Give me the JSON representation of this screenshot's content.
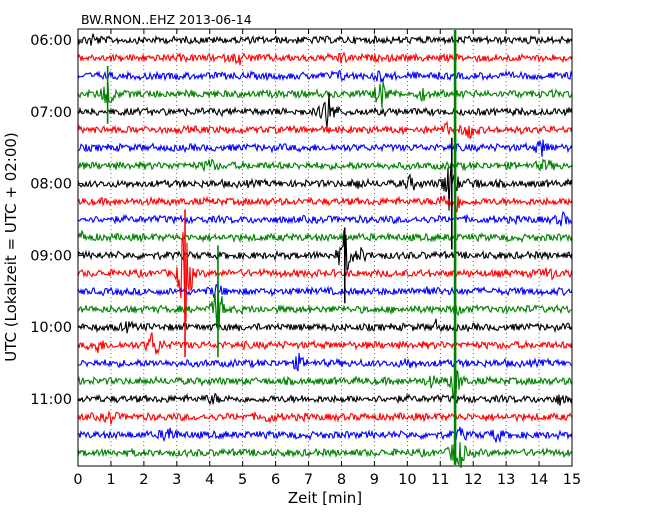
{
  "chart_data": {
    "type": "line",
    "title": "BW.RNON..EHZ 2013-06-14",
    "xlabel": "Zeit  [min]",
    "ylabel": "UTC (Lokalzeit = UTC + 02:00)",
    "xlim": [
      0,
      15
    ],
    "x_ticks": [
      "0",
      "1",
      "2",
      "3",
      "4",
      "5",
      "6",
      "7",
      "8",
      "9",
      "10",
      "11",
      "12",
      "13",
      "14",
      "15"
    ],
    "y_tick_labels": [
      "06:00",
      "07:00",
      "08:00",
      "09:00",
      "10:00",
      "11:00"
    ],
    "trace_interval_minutes": 15,
    "start_time": "06:00",
    "trace_colors": [
      "#000000",
      "#ff0000",
      "#0000ff",
      "#008000"
    ],
    "traces": [
      {
        "start": "06:00",
        "color": "#000000",
        "spikes": [
          [
            0.45,
            0.5
          ]
        ]
      },
      {
        "start": "06:15",
        "color": "#ff0000",
        "spikes": [
          [
            4.9,
            0.5
          ],
          [
            8.0,
            0.4
          ]
        ]
      },
      {
        "start": "06:30",
        "color": "#0000ff",
        "spikes": [
          [
            7.9,
            0.4
          ],
          [
            9.2,
            0.4
          ]
        ]
      },
      {
        "start": "06:45",
        "color": "#008000",
        "spikes": [
          [
            0.9,
            1.5
          ],
          [
            9.2,
            1.5
          ],
          [
            10.5,
            0.5
          ]
        ]
      },
      {
        "start": "07:00",
        "color": "#000000",
        "spikes": [
          [
            7.6,
            2.2
          ]
        ]
      },
      {
        "start": "07:15",
        "color": "#ff0000",
        "spikes": [
          [
            11.2,
            0.4
          ],
          [
            11.9,
            0.8
          ]
        ]
      },
      {
        "start": "07:30",
        "color": "#0000ff",
        "spikes": [
          [
            14.1,
            0.8
          ]
        ]
      },
      {
        "start": "07:45",
        "color": "#008000",
        "spikes": [
          [
            4.0,
            0.6
          ],
          [
            14.2,
            0.5
          ]
        ]
      },
      {
        "start": "08:00",
        "color": "#000000",
        "spikes": [
          [
            8.5,
            0.4
          ],
          [
            10.1,
            0.6
          ],
          [
            11.3,
            3.0
          ],
          [
            12.0,
            0.5
          ]
        ]
      },
      {
        "start": "08:15",
        "color": "#ff0000",
        "spikes": [
          [
            11.1,
            0.6
          ],
          [
            11.5,
            0.8
          ]
        ]
      },
      {
        "start": "08:30",
        "color": "#0000ff",
        "spikes": [
          [
            14.7,
            0.5
          ]
        ]
      },
      {
        "start": "08:45",
        "color": "#008000",
        "spikes": [
          [
            0.1,
            0.4
          ]
        ]
      },
      {
        "start": "09:00",
        "color": "#000000",
        "spikes": [
          [
            8.1,
            2.5
          ],
          [
            8.6,
            0.5
          ]
        ]
      },
      {
        "start": "09:15",
        "color": "#ff0000",
        "spikes": [
          [
            3.25,
            6.0
          ],
          [
            14.3,
            0.6
          ]
        ]
      },
      {
        "start": "09:30",
        "color": "#0000ff",
        "spikes": [
          [
            4.2,
            0.6
          ],
          [
            10.6,
            0.4
          ]
        ]
      },
      {
        "start": "09:45",
        "color": "#008000",
        "spikes": [
          [
            4.25,
            2.5
          ],
          [
            11.6,
            0.4
          ]
        ]
      },
      {
        "start": "10:00",
        "color": "#000000",
        "spikes": [
          [
            1.5,
            0.3
          ],
          [
            10.9,
            0.5
          ]
        ]
      },
      {
        "start": "10:15",
        "color": "#ff0000",
        "spikes": [
          [
            0.6,
            0.6
          ],
          [
            2.3,
            1.6
          ]
        ]
      },
      {
        "start": "10:30",
        "color": "#0000ff",
        "spikes": [
          [
            6.7,
            0.6
          ],
          [
            10.0,
            0.4
          ]
        ]
      },
      {
        "start": "10:45",
        "color": "#008000",
        "spikes": [
          [
            10.7,
            0.4
          ],
          [
            11.45,
            2.0
          ]
        ]
      },
      {
        "start": "11:00",
        "color": "#000000",
        "spikes": [
          [
            4.1,
            0.4
          ],
          [
            14.6,
            0.4
          ]
        ]
      },
      {
        "start": "11:15",
        "color": "#ff0000",
        "spikes": [
          [
            1.0,
            0.5
          ],
          [
            5.8,
            0.4
          ]
        ]
      },
      {
        "start": "11:30",
        "color": "#0000ff",
        "spikes": [
          [
            2.75,
            0.9
          ],
          [
            11.6,
            0.5
          ],
          [
            12.7,
            0.6
          ]
        ]
      },
      {
        "start": "11:45",
        "color": "#008000",
        "spikes": [
          [
            11.5,
            1.6
          ],
          [
            11.6,
            0.6
          ]
        ]
      }
    ],
    "long_events": [
      {
        "minute": 11.45,
        "from_trace": 0,
        "to_trace": 23,
        "color": "#008000"
      },
      {
        "minute": 11.35,
        "from_trace": 6,
        "to_trace": 11,
        "color": "#000000"
      },
      {
        "minute": 3.25,
        "from_trace": 10,
        "to_trace": 17,
        "color": "#ff0000"
      },
      {
        "minute": 4.25,
        "from_trace": 12,
        "to_trace": 17,
        "color": "#008000"
      },
      {
        "minute": 0.9,
        "from_trace": 2,
        "to_trace": 4,
        "color": "#008000"
      },
      {
        "minute": 8.1,
        "from_trace": 11,
        "to_trace": 14,
        "color": "#000000"
      }
    ],
    "grid": {
      "x": true,
      "style": "dotted"
    },
    "legend": "none"
  }
}
